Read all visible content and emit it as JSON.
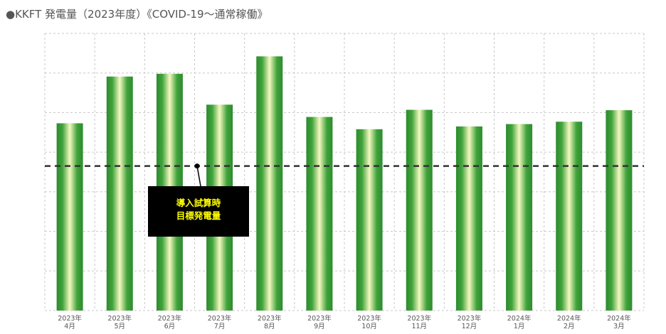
{
  "chart_data": {
    "type": "bar",
    "title": "●KKFT 発電量（2023年度）《COVID-19～通常稼働》",
    "categories": [
      [
        "2023年",
        "4月"
      ],
      [
        "2023年",
        "5月"
      ],
      [
        "2023年",
        "6月"
      ],
      [
        "2023年",
        "7月"
      ],
      [
        "2023年",
        "8月"
      ],
      [
        "2023年",
        "9月"
      ],
      [
        "2023年",
        "10月"
      ],
      [
        "2023年",
        "11月"
      ],
      [
        "2023年",
        "12月"
      ],
      [
        "2024年",
        "1月"
      ],
      [
        "2024年",
        "2月"
      ],
      [
        "2024年",
        "3月"
      ]
    ],
    "values": [
      47.3,
      59.1,
      59.8,
      52.0,
      64.2,
      48.9,
      45.8,
      50.7,
      46.5,
      47.1,
      47.7,
      50.6
    ],
    "ylim": [
      0,
      70
    ],
    "grid": true,
    "reference_line": {
      "value": 36.5,
      "label_lines": [
        "導入試算時",
        "目標発電量"
      ]
    },
    "colors": {
      "bar_dark": "#2e8b2e",
      "bar_light": "#f5f8c0",
      "grid": "#c8c8c8",
      "line": "#333333",
      "callout_bg": "#000000",
      "callout_text": "#ffff00"
    }
  }
}
